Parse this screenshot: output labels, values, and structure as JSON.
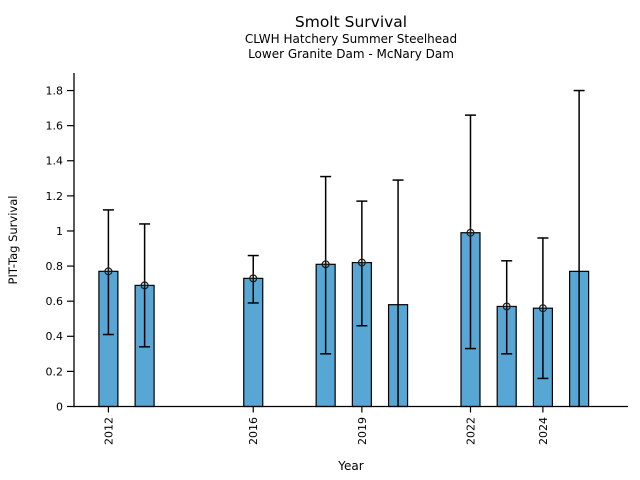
{
  "chart_data": {
    "type": "bar",
    "title": "Smolt Survival",
    "subtitle1": "CLWH Hatchery Summer Steelhead",
    "subtitle2": "Lower Granite Dam - McNary Dam",
    "xlabel": "Year",
    "ylabel": "PIT-Tag Survival",
    "xlim": [
      2011.05,
      2026.35
    ],
    "ylim": [
      0,
      1.9
    ],
    "x_ticks": [
      2012,
      2016,
      2019,
      2022,
      2024
    ],
    "y_ticks": [
      0,
      0.2,
      0.4,
      0.6,
      0.8,
      1,
      1.2,
      1.4,
      1.6,
      1.8
    ],
    "y_tick_labels": [
      "0",
      "0.2",
      "0.4",
      "0.6",
      "0.8",
      "1",
      "1.2",
      "1.4",
      "1.6",
      "1.8"
    ],
    "grid": false,
    "legend_position": "none",
    "bar_color": "#58A6D4",
    "bar_edge_color": "#000000",
    "error_bar_color": "#000000",
    "marker_color": "#1a1a1a",
    "series": [
      {
        "year": 2012,
        "survival": 0.77,
        "ci_low": 0.41,
        "ci_high": 1.12,
        "point_marker": true
      },
      {
        "year": 2013,
        "survival": 0.69,
        "ci_low": 0.34,
        "ci_high": 1.04,
        "point_marker": true
      },
      {
        "year": 2016,
        "survival": 0.73,
        "ci_low": 0.59,
        "ci_high": 0.86,
        "point_marker": true
      },
      {
        "year": 2018,
        "survival": 0.81,
        "ci_low": 0.3,
        "ci_high": 1.31,
        "point_marker": true
      },
      {
        "year": 2019,
        "survival": 0.82,
        "ci_low": 0.46,
        "ci_high": 1.17,
        "point_marker": true
      },
      {
        "year": 2020,
        "survival": 0.58,
        "ci_low": 0.0,
        "ci_high": 1.29,
        "point_marker": false
      },
      {
        "year": 2022,
        "survival": 0.99,
        "ci_low": 0.33,
        "ci_high": 1.66,
        "point_marker": true
      },
      {
        "year": 2023,
        "survival": 0.57,
        "ci_low": 0.3,
        "ci_high": 0.83,
        "point_marker": true
      },
      {
        "year": 2024,
        "survival": 0.56,
        "ci_low": 0.16,
        "ci_high": 0.96,
        "point_marker": true
      },
      {
        "year": 2025,
        "survival": 0.77,
        "ci_low": 0.0,
        "ci_high": 1.8,
        "point_marker": false
      }
    ]
  }
}
